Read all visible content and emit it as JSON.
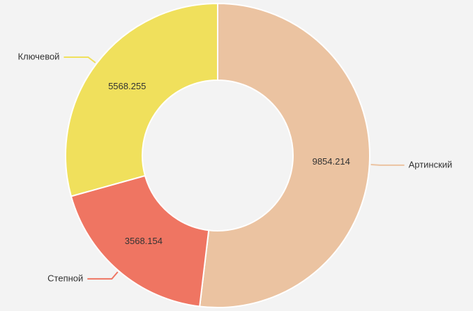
{
  "chart_data": {
    "type": "pie",
    "categories": [
      "Артинский",
      "Степной",
      "Ключевой"
    ],
    "values": [
      9854.214,
      3568.154,
      5568.255
    ],
    "colors": [
      "#ebc3a1",
      "#ef7562",
      "#f0e05c"
    ],
    "donut": true
  }
}
